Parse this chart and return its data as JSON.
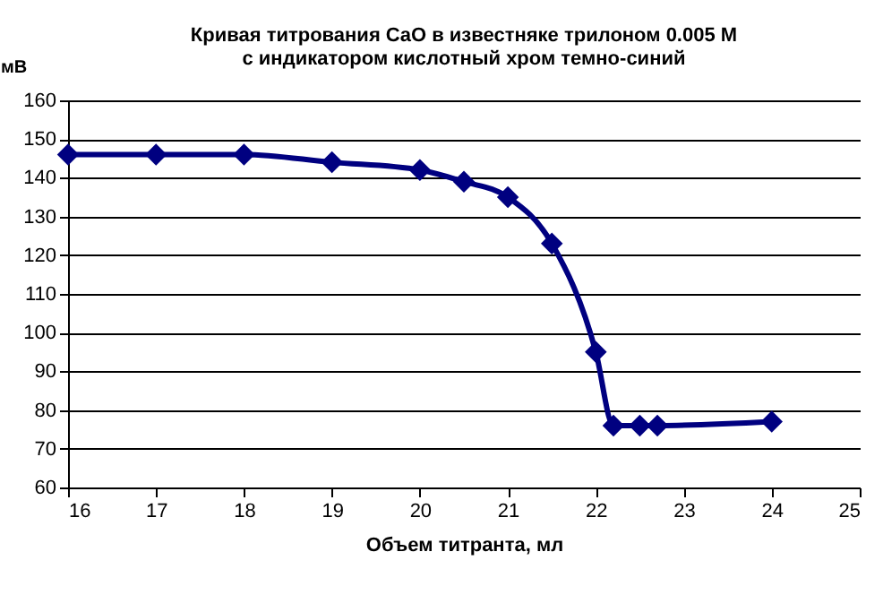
{
  "chart_data": {
    "type": "line",
    "title": [
      "Кривая титрования CaO в известняке трилоном  0.005 М",
      "с индикатором кислотный хром темно-синий"
    ],
    "xlabel": "Объем титранта, мл",
    "ylabel": "мВ",
    "x": [
      16,
      17,
      18,
      19,
      20,
      20.5,
      21,
      21.5,
      22,
      22.2,
      22.5,
      22.7,
      24
    ],
    "series": [
      {
        "color": "#000080",
        "values": [
          146,
          146,
          146,
          144,
          142,
          139,
          135,
          123,
          95,
          76,
          76,
          76,
          77
        ]
      }
    ],
    "xlim": [
      16,
      25
    ],
    "xticks": [
      16,
      17,
      18,
      19,
      20,
      21,
      22,
      23,
      24,
      25
    ],
    "ylim": [
      60,
      160
    ],
    "yticks": [
      60,
      70,
      80,
      90,
      100,
      110,
      120,
      130,
      140,
      150,
      160
    ],
    "grid": "y",
    "marker": "diamond",
    "line_style": "solid"
  }
}
